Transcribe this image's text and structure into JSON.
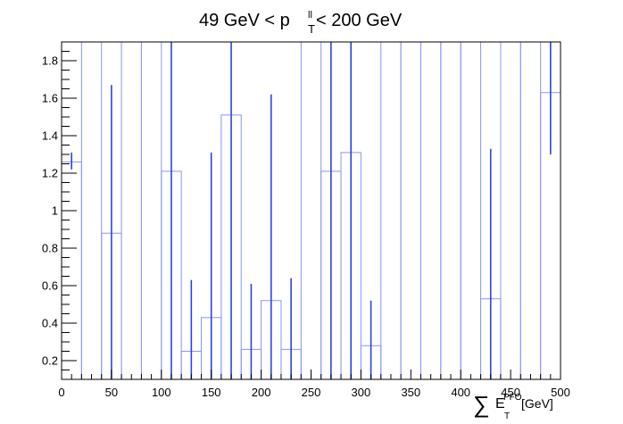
{
  "chart_data": {
    "type": "bar",
    "title": {
      "prefix": "49 GeV < p",
      "sup": "ll",
      "sub": "T",
      "suffix": " < 200 GeV"
    },
    "xlabel": {
      "symbol": "∑",
      "main": "E",
      "sup": "PFO",
      "sub": "T",
      "unit": " [GeV]"
    },
    "xlim": [
      0,
      500
    ],
    "ylim": [
      0.1,
      1.9
    ],
    "x_ticks": [
      0,
      50,
      100,
      150,
      200,
      250,
      300,
      350,
      400,
      450,
      500
    ],
    "y_ticks": [
      0.2,
      0.4,
      0.6,
      0.8,
      1,
      1.2,
      1.4,
      1.6,
      1.8
    ],
    "grid": false,
    "bin_width": 20,
    "bins": [
      {
        "low": 0,
        "value": 1.26,
        "err_low": 1.22,
        "err_high": 1.31
      },
      {
        "low": 20,
        "value": 1.9
      },
      {
        "low": 40,
        "value": 0.88,
        "err_low": 0.1,
        "err_high": 1.67
      },
      {
        "low": 60,
        "value": 1.9
      },
      {
        "low": 80,
        "value": 1.9
      },
      {
        "low": 100,
        "value": 1.21,
        "err_low": 0.1,
        "err_high": 1.9
      },
      {
        "low": 120,
        "value": 0.25,
        "err_low": 0.1,
        "err_high": 0.63
      },
      {
        "low": 140,
        "value": 0.43,
        "err_low": 0.1,
        "err_high": 1.31
      },
      {
        "low": 160,
        "value": 1.51,
        "err_low": 0.1,
        "err_high": 1.9
      },
      {
        "low": 180,
        "value": 0.26,
        "err_low": 0.1,
        "err_high": 0.61
      },
      {
        "low": 200,
        "value": 0.52,
        "err_low": 0.1,
        "err_high": 1.62
      },
      {
        "low": 220,
        "value": 0.26,
        "err_low": 0.1,
        "err_high": 0.64
      },
      {
        "low": 240,
        "value": 1.9
      },
      {
        "low": 260,
        "value": 1.21,
        "err_low": 0.1,
        "err_high": 1.9
      },
      {
        "low": 280,
        "value": 1.31,
        "err_low": 0.1,
        "err_high": 1.9
      },
      {
        "low": 300,
        "value": 0.28,
        "err_low": 0.1,
        "err_high": 0.52
      },
      {
        "low": 320,
        "value": 1.9
      },
      {
        "low": 340,
        "value": 1.9
      },
      {
        "low": 360,
        "value": 1.9
      },
      {
        "low": 380,
        "value": 1.9
      },
      {
        "low": 400,
        "value": 1.9
      },
      {
        "low": 420,
        "value": 0.53,
        "err_low": 0.1,
        "err_high": 1.33
      },
      {
        "low": 440,
        "value": 1.9
      },
      {
        "low": 460,
        "value": 1.9
      },
      {
        "low": 480,
        "value": 1.63,
        "err_low": 1.3,
        "err_high": 1.9
      }
    ],
    "colors": {
      "histogram": "#8895f7",
      "errorbar": "#2c44d8",
      "axis": "#000000"
    }
  }
}
